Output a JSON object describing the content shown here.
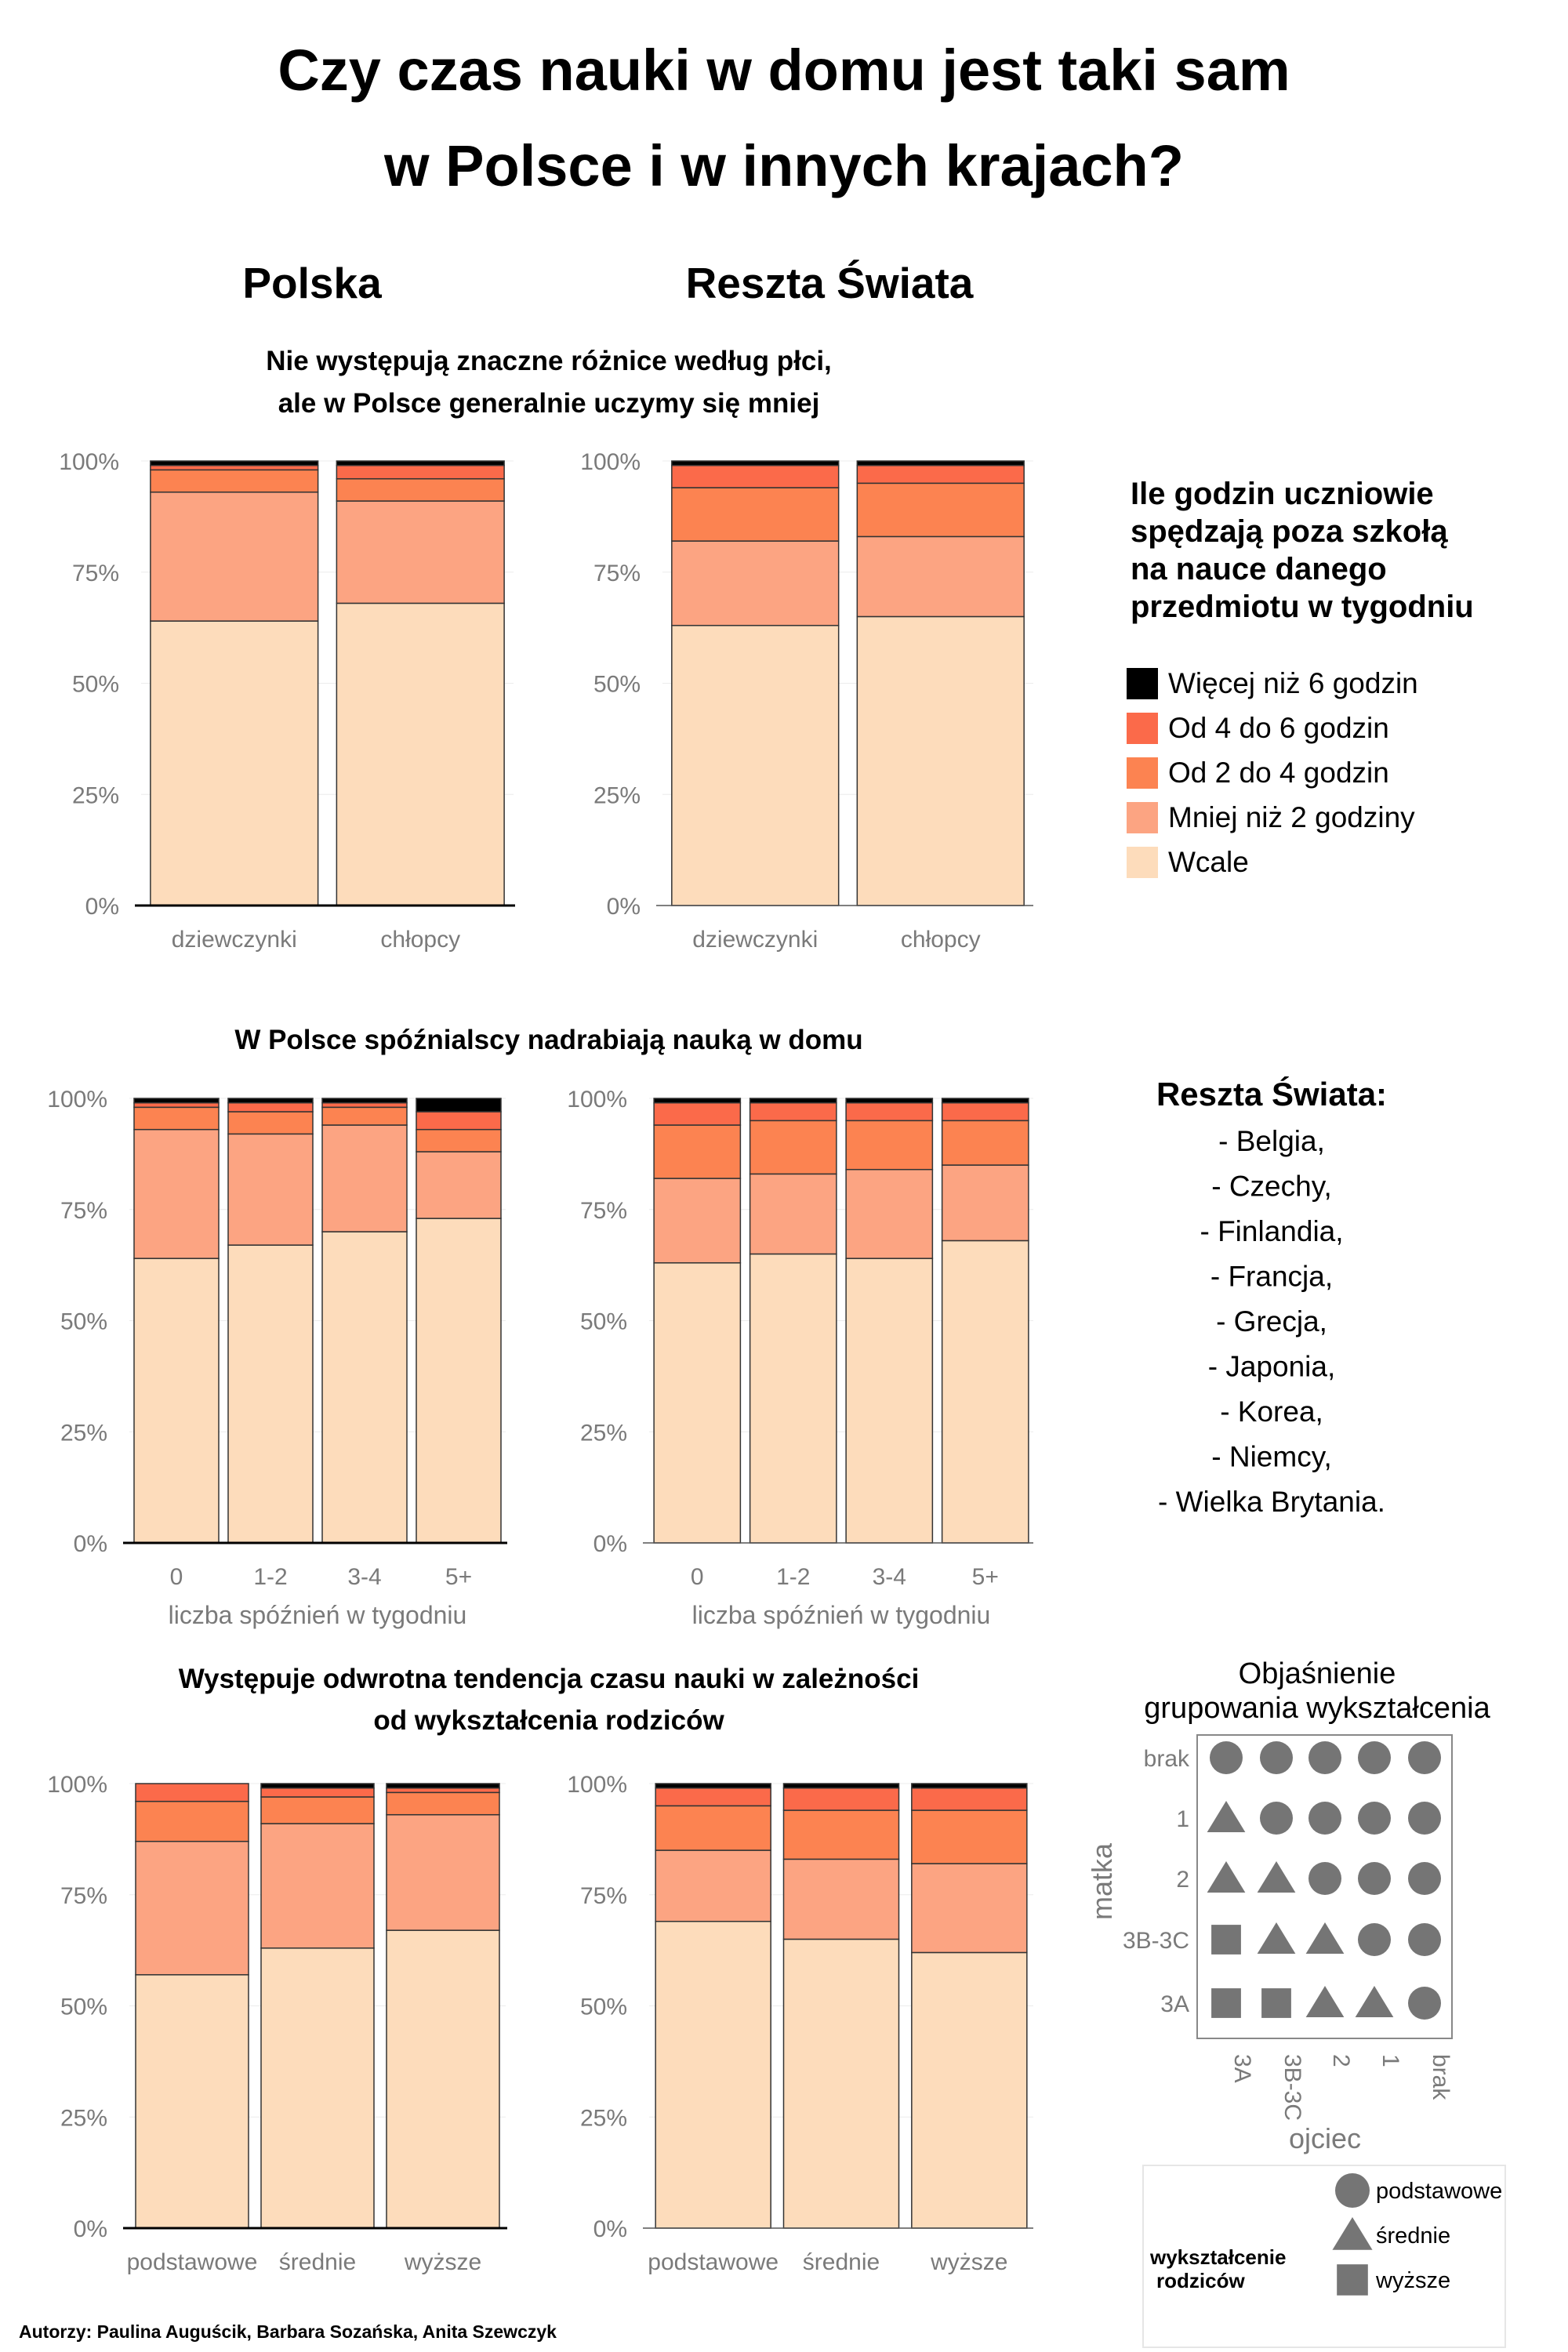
{
  "poster": {
    "title_line1": "Czy czas nauki w domu jest taki sam",
    "title_line2": "w Polsce  i w innych krajach?",
    "col_left": "Polska",
    "col_right": "Reszta Świata",
    "authors": "Autorzy: Paulina Auguścik, Barbara Sozańska, Anita Szewczyk"
  },
  "sections": [
    {
      "title_lines": [
        "Nie występują znaczne różnice według płci,",
        "ale w Polsce generalnie uczymy się mniej"
      ],
      "xlabel": ""
    },
    {
      "title_lines": [
        "W Polsce spóźnialscy nadrabiają nauką w domu"
      ],
      "xlabel": "liczba spóźnień w tygodniu"
    },
    {
      "title_lines": [
        "Występuje odwrotna tendencja czasu nauki w zależności",
        "od wykształcenia rodziców"
      ],
      "xlabel": ""
    }
  ],
  "legend": {
    "title_lines": [
      "Ile godzin uczniowie",
      "spędzają poza szkołą",
      "na nauce danego",
      "przedmiotu w tygodniu"
    ],
    "items": [
      {
        "label": "Więcej niż 6 godzin",
        "color": "#000000"
      },
      {
        "label": "Od 4 do 6 godzin",
        "color": "#fb6a4a"
      },
      {
        "label": "Od 2 do 4 godzin",
        "color": "#fc8351"
      },
      {
        "label": "Mniej niż 2 godziny",
        "color": "#fca482"
      },
      {
        "label": "Wcale",
        "color": "#fddcbb"
      }
    ]
  },
  "countries": {
    "title": "Reszta Świata:",
    "items": [
      "- Belgia,",
      "- Czechy,",
      "- Finlandia,",
      "- Francja,",
      "- Grecja,",
      "- Japonia,",
      "- Korea,",
      "- Niemcy,",
      "- Wielka Brytania."
    ]
  },
  "grouping": {
    "title_lines": [
      "Objaśnienie",
      "grupowania wykształcenia"
    ],
    "ylabel": "matka",
    "xlabel": "ojciec",
    "rows": [
      "brak",
      "1",
      "2",
      "3B-3C",
      "3A"
    ],
    "cols": [
      "3A",
      "3B-3C",
      "2",
      "1",
      "brak"
    ],
    "grid": [
      [
        "circle",
        "circle",
        "circle",
        "circle",
        "circle"
      ],
      [
        "triangle",
        "circle",
        "circle",
        "circle",
        "circle"
      ],
      [
        "triangle",
        "triangle",
        "circle",
        "circle",
        "circle"
      ],
      [
        "square",
        "triangle",
        "triangle",
        "circle",
        "circle"
      ],
      [
        "square",
        "square",
        "triangle",
        "triangle",
        "circle"
      ]
    ],
    "legend_title_lines": [
      "wykształcenie",
      "rodziców"
    ],
    "legend_items": [
      {
        "label": "podstawowe",
        "shape": "circle"
      },
      {
        "label": "średnie",
        "shape": "triangle"
      },
      {
        "label": "wyższe",
        "shape": "square"
      }
    ],
    "color": "#757575"
  },
  "chart_data": [
    {
      "type": "bar",
      "stacked": true,
      "region": "Polska",
      "section": 0,
      "categories": [
        "dziewczynki",
        "chłopcy"
      ],
      "series": [
        {
          "name": "Wcale",
          "values": [
            64,
            68
          ]
        },
        {
          "name": "Mniej niż 2 godziny",
          "values": [
            29,
            23
          ]
        },
        {
          "name": "Od 2 do 4 godzin",
          "values": [
            5,
            5
          ]
        },
        {
          "name": "Od 4 do 6 godzin",
          "values": [
            1,
            3
          ]
        },
        {
          "name": "Więcej niż 6 godzin",
          "values": [
            1,
            1
          ]
        }
      ],
      "ylim": [
        0,
        100
      ],
      "yticks": [
        "0%",
        "25%",
        "50%",
        "75%",
        "100%"
      ]
    },
    {
      "type": "bar",
      "stacked": true,
      "region": "Reszta Świata",
      "section": 0,
      "categories": [
        "dziewczynki",
        "chłopcy"
      ],
      "series": [
        {
          "name": "Wcale",
          "values": [
            63,
            65
          ]
        },
        {
          "name": "Mniej niż 2 godziny",
          "values": [
            19,
            18
          ]
        },
        {
          "name": "Od 2 do 4 godzin",
          "values": [
            12,
            12
          ]
        },
        {
          "name": "Od 4 do 6 godzin",
          "values": [
            5,
            4
          ]
        },
        {
          "name": "Więcej niż 6 godzin",
          "values": [
            1,
            1
          ]
        }
      ],
      "ylim": [
        0,
        100
      ],
      "yticks": [
        "0%",
        "25%",
        "50%",
        "75%",
        "100%"
      ]
    },
    {
      "type": "bar",
      "stacked": true,
      "region": "Polska",
      "section": 1,
      "categories": [
        "0",
        "1-2",
        "3-4",
        "5+"
      ],
      "series": [
        {
          "name": "Wcale",
          "values": [
            64,
            67,
            70,
            73
          ]
        },
        {
          "name": "Mniej niż 2 godziny",
          "values": [
            29,
            25,
            24,
            15
          ]
        },
        {
          "name": "Od 2 do 4 godzin",
          "values": [
            5,
            5,
            4,
            5
          ]
        },
        {
          "name": "Od 4 do 6 godzin",
          "values": [
            1,
            2,
            1,
            4
          ]
        },
        {
          "name": "Więcej niż 6 godzin",
          "values": [
            1,
            1,
            1,
            3
          ]
        }
      ],
      "ylim": [
        0,
        100
      ],
      "yticks": [
        "0%",
        "25%",
        "50%",
        "75%",
        "100%"
      ]
    },
    {
      "type": "bar",
      "stacked": true,
      "region": "Reszta Świata",
      "section": 1,
      "categories": [
        "0",
        "1-2",
        "3-4",
        "5+"
      ],
      "series": [
        {
          "name": "Wcale",
          "values": [
            63,
            65,
            64,
            68
          ]
        },
        {
          "name": "Mniej niż 2 godziny",
          "values": [
            19,
            18,
            20,
            17
          ]
        },
        {
          "name": "Od 2 do 4 godzin",
          "values": [
            12,
            12,
            11,
            10
          ]
        },
        {
          "name": "Od 4 do 6 godzin",
          "values": [
            5,
            4,
            4,
            4
          ]
        },
        {
          "name": "Więcej niż 6 godzin",
          "values": [
            1,
            1,
            1,
            1
          ]
        }
      ],
      "ylim": [
        0,
        100
      ],
      "yticks": [
        "0%",
        "25%",
        "50%",
        "75%",
        "100%"
      ]
    },
    {
      "type": "bar",
      "stacked": true,
      "region": "Polska",
      "section": 2,
      "categories": [
        "podstawowe",
        "średnie",
        "wyższe"
      ],
      "series": [
        {
          "name": "Wcale",
          "values": [
            57,
            63,
            67
          ]
        },
        {
          "name": "Mniej niż 2 godziny",
          "values": [
            30,
            28,
            26
          ]
        },
        {
          "name": "Od 2 do 4 godzin",
          "values": [
            9,
            6,
            5
          ]
        },
        {
          "name": "Od 4 do 6 godzin",
          "values": [
            4,
            2,
            1
          ]
        },
        {
          "name": "Więcej niż 6 godzin",
          "values": [
            0,
            1,
            1
          ]
        }
      ],
      "ylim": [
        0,
        100
      ],
      "yticks": [
        "0%",
        "25%",
        "50%",
        "75%",
        "100%"
      ]
    },
    {
      "type": "bar",
      "stacked": true,
      "region": "Reszta Świata",
      "section": 2,
      "categories": [
        "podstawowe",
        "średnie",
        "wyższe"
      ],
      "series": [
        {
          "name": "Wcale",
          "values": [
            69,
            65,
            62
          ]
        },
        {
          "name": "Mniej niż 2 godziny",
          "values": [
            16,
            18,
            20
          ]
        },
        {
          "name": "Od 2 do 4 godzin",
          "values": [
            10,
            11,
            12
          ]
        },
        {
          "name": "Od 4 do 6 godzin",
          "values": [
            4,
            5,
            5
          ]
        },
        {
          "name": "Więcej niż 6 godzin",
          "values": [
            1,
            1,
            1
          ]
        }
      ],
      "ylim": [
        0,
        100
      ],
      "yticks": [
        "0%",
        "25%",
        "50%",
        "75%",
        "100%"
      ]
    }
  ]
}
